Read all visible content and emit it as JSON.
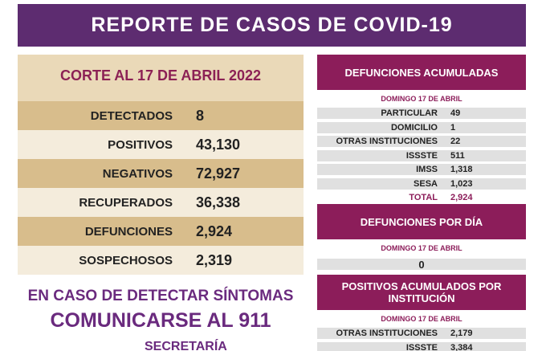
{
  "header": {
    "title": "REPORTE DE CASOS DE COVID-19"
  },
  "summary": {
    "title": "CORTE AL 17 DE ABRIL 2022",
    "rows": [
      [
        "DETECTADOS",
        "8"
      ],
      [
        "POSITIVOS",
        "43,130"
      ],
      [
        "NEGATIVOS",
        "72,927"
      ],
      [
        "RECUPERADOS",
        "36,338"
      ],
      [
        "DEFUNCIONES",
        "2,924"
      ],
      [
        "SOSPECHOSOS",
        "2,319"
      ]
    ]
  },
  "notice": {
    "line1": "EN CASO DE DETECTAR SÍNTOMAS",
    "line2": "COMUNICARSE AL 911",
    "footer": "SECRETARÍA"
  },
  "panels": [
    {
      "title": "DEFUNCIONES ACUMULADAS",
      "date": "DOMINGO 17 DE ABRIL",
      "rows": [
        [
          "PARTICULAR",
          "49"
        ],
        [
          "DOMICILIO",
          "1"
        ],
        [
          "OTRAS INSTITUCIONES",
          "22"
        ],
        [
          "ISSSTE",
          "511"
        ],
        [
          "IMSS",
          "1,318"
        ],
        [
          "SESA",
          "1,023"
        ]
      ],
      "total": [
        "TOTAL",
        "2,924"
      ]
    },
    {
      "title": "DEFUNCIONES POR DÍA",
      "date": "DOMINGO 17 DE ABRIL",
      "value": "0"
    },
    {
      "title": "POSITIVOS ACUMULADOS POR INSTITUCIÓN",
      "date": "DOMINGO 17 DE ABRIL",
      "rows": [
        [
          "OTRAS INSTITUCIONES",
          "2,179"
        ],
        [
          "ISSSTE",
          "3,384"
        ]
      ]
    }
  ]
}
